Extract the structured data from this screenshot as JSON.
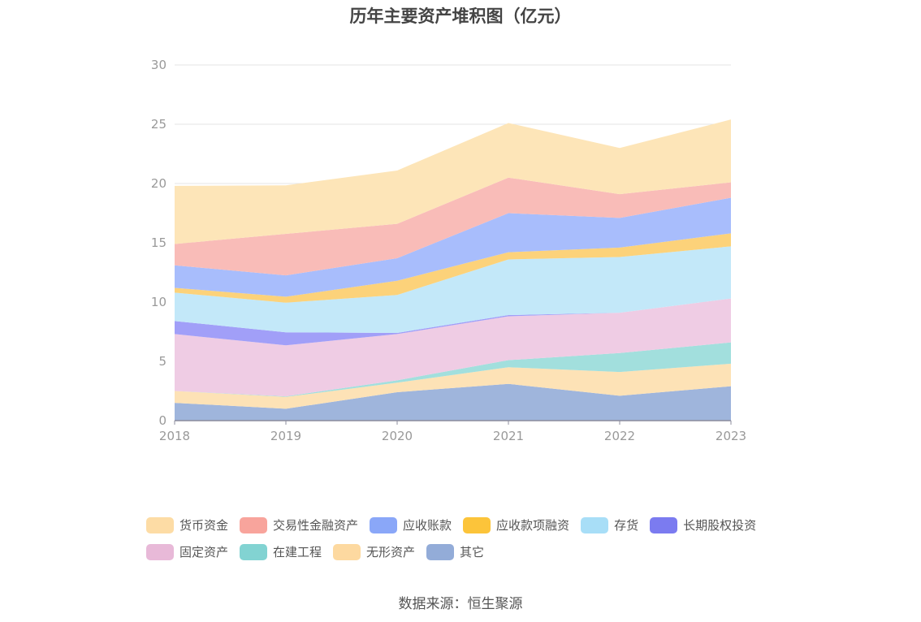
{
  "chart_data": {
    "type": "area",
    "stacked": true,
    "title": "历年主要资产堆积图（亿元）",
    "xlabel": "",
    "ylabel": "",
    "categories": [
      "2018",
      "2019",
      "2020",
      "2021",
      "2022",
      "2023"
    ],
    "ylim": [
      0,
      30
    ],
    "yticks": [
      0,
      5,
      10,
      15,
      20,
      25,
      30
    ],
    "grid": true,
    "legend_position": "bottom",
    "series": [
      {
        "name": "其它",
        "color": "#9fb5dc",
        "legend_color": "#93acd8",
        "values": [
          1.5,
          1.0,
          2.4,
          3.1,
          2.1,
          2.9
        ]
      },
      {
        "name": "无形资产",
        "color": "#fde2b6",
        "legend_color": "#fdd9a0",
        "values": [
          1.0,
          1.0,
          0.8,
          1.4,
          2.0,
          1.9
        ]
      },
      {
        "name": "在建工程",
        "color": "#a2dfdd",
        "legend_color": "#82d3d2",
        "values": [
          0.0,
          0.05,
          0.2,
          0.6,
          1.6,
          1.8
        ]
      },
      {
        "name": "固定资产",
        "color": "#efcce4",
        "legend_color": "#e8b9d8",
        "values": [
          4.8,
          4.3,
          3.9,
          3.7,
          3.4,
          3.7
        ]
      },
      {
        "name": "长期股权投资",
        "color": "#a19ff8",
        "legend_color": "#7b7bf0",
        "values": [
          1.1,
          1.1,
          0.1,
          0.1,
          0.0,
          0.0
        ]
      },
      {
        "name": "存货",
        "color": "#c3e8f9",
        "legend_color": "#a8def7",
        "values": [
          2.4,
          2.5,
          3.2,
          4.7,
          4.7,
          4.4
        ]
      },
      {
        "name": "应收款项融资",
        "color": "#fcd27a",
        "legend_color": "#fcc43a",
        "values": [
          0.4,
          0.5,
          1.2,
          0.6,
          0.8,
          1.1
        ]
      },
      {
        "name": "应收账款",
        "color": "#a8bdfc",
        "legend_color": "#8aa7f8",
        "values": [
          1.9,
          1.8,
          1.9,
          3.3,
          2.5,
          3.0
        ]
      },
      {
        "name": "交易性金融资产",
        "color": "#f9bcb8",
        "legend_color": "#f8a49c",
        "values": [
          1.8,
          3.5,
          2.9,
          3.0,
          2.0,
          1.3
        ]
      },
      {
        "name": "货币资金",
        "color": "#fde5b8",
        "legend_color": "#fddca5",
        "values": [
          4.9,
          4.1,
          4.5,
          4.6,
          3.9,
          5.3
        ]
      }
    ],
    "legend_order": [
      "货币资金",
      "交易性金融资产",
      "应收账款",
      "应收款项融资",
      "存货",
      "长期股权投资",
      "固定资产",
      "在建工程",
      "无形资产",
      "其它"
    ]
  },
  "source": "数据来源：恒生聚源"
}
